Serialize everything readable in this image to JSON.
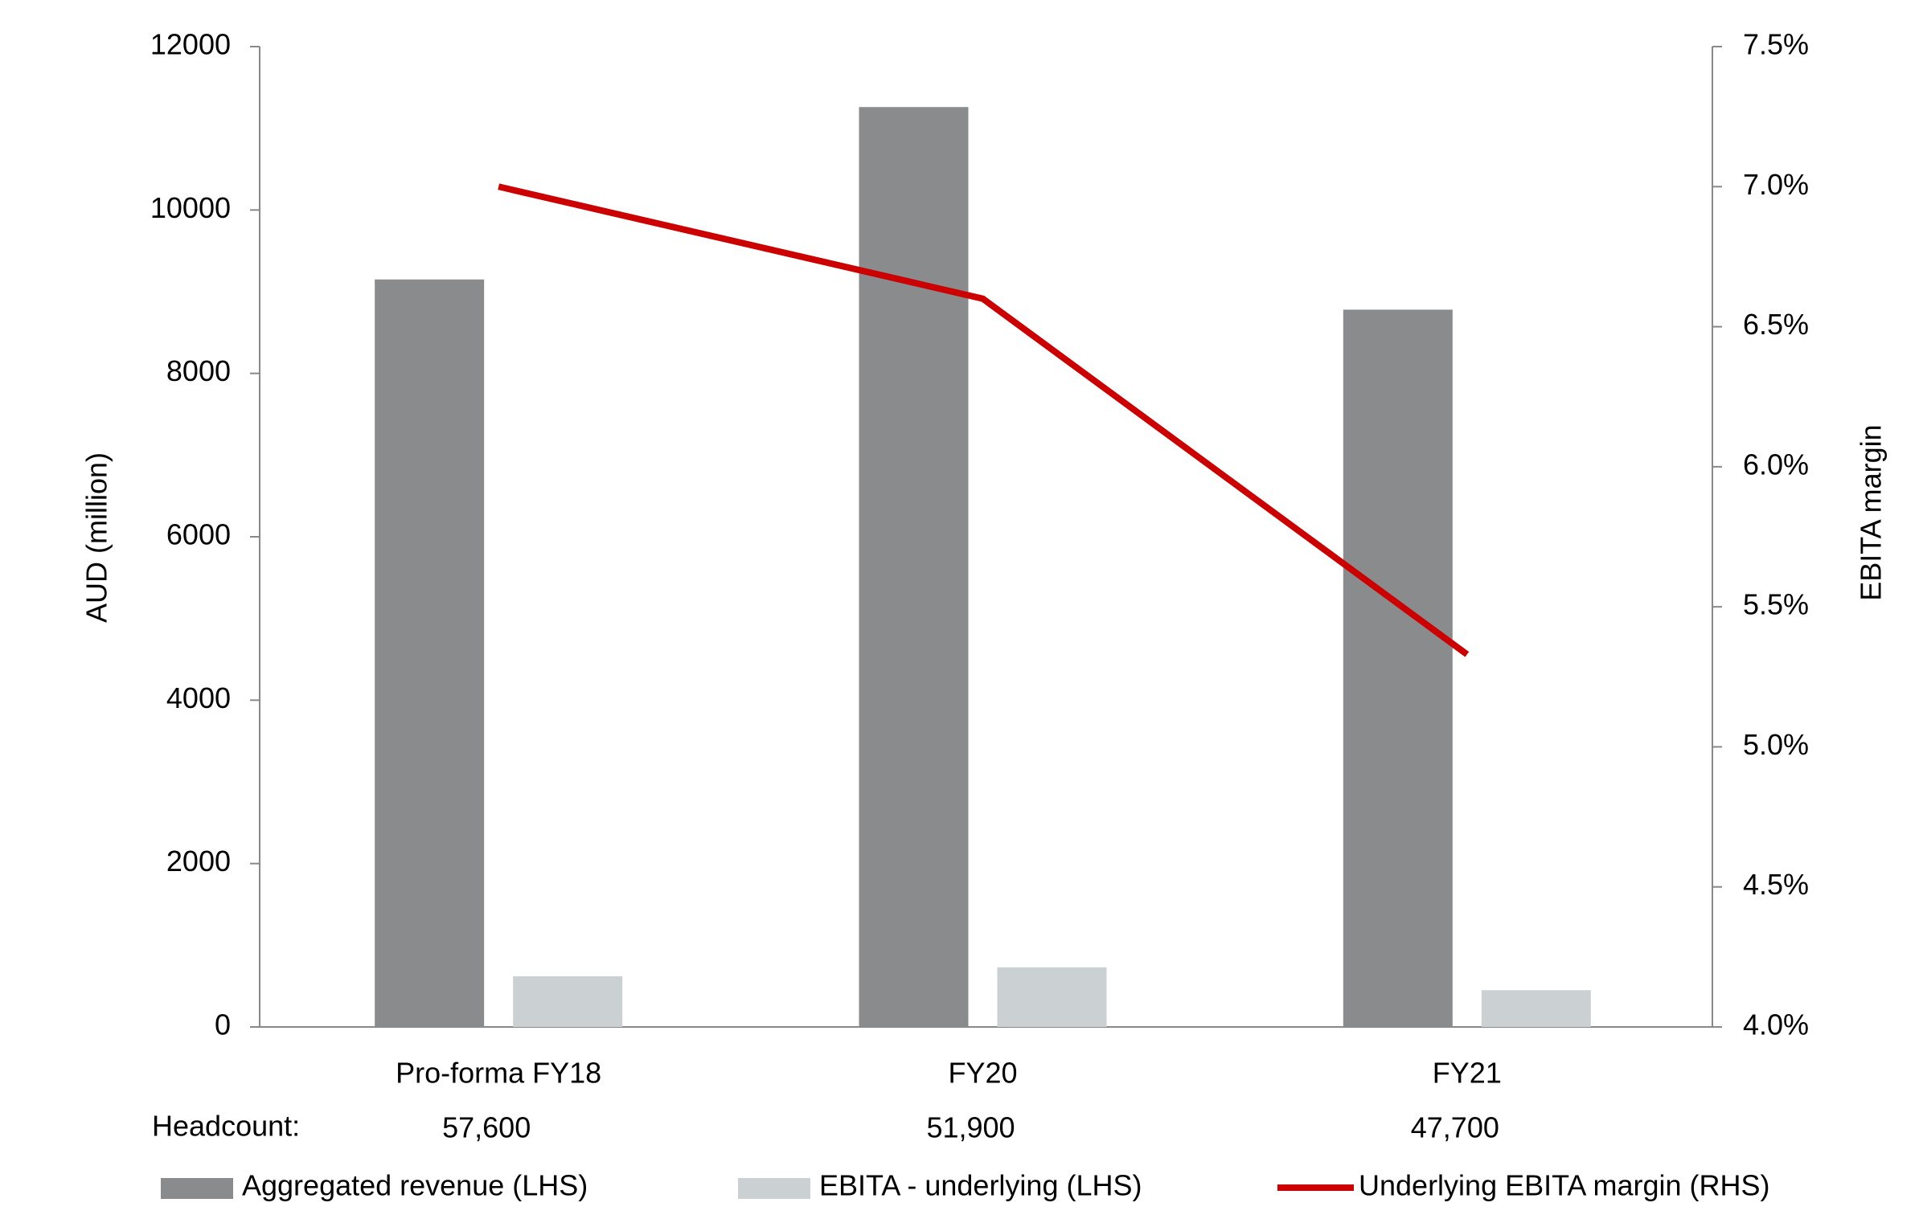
{
  "chart_data": {
    "type": "bar_line",
    "categories": [
      "Pro-forma FY18",
      "FY20",
      "FY21"
    ],
    "series": [
      {
        "name": "Aggregated revenue (LHS)",
        "type": "bar",
        "color": "#8a8b8d",
        "values": [
          9150,
          11260,
          8780
        ]
      },
      {
        "name": "EBITA - underlying (LHS)",
        "type": "bar",
        "color": "#cbd0d2",
        "values": [
          620,
          730,
          450
        ]
      },
      {
        "name": "Underlying EBITA margin (RHS)",
        "type": "line",
        "axis": "y2",
        "color": "#cc0000",
        "values": [
          7.0,
          6.6,
          5.33
        ]
      }
    ],
    "y_label": "AUD (million)",
    "y2_label": "EBITA margin",
    "ylim": [
      0,
      12000
    ],
    "yticks": [
      0,
      2000,
      4000,
      6000,
      8000,
      10000,
      12000
    ],
    "y2lim": [
      4.0,
      7.5
    ],
    "y2ticks": [
      {
        "value": 4.0,
        "label": "4.0%"
      },
      {
        "value": 4.5,
        "label": "4.5%"
      },
      {
        "value": 5.0,
        "label": "5.0%"
      },
      {
        "value": 5.5,
        "label": "5.5%"
      },
      {
        "value": 6.0,
        "label": "6.0%"
      },
      {
        "value": 6.5,
        "label": "6.5%"
      },
      {
        "value": 7.0,
        "label": "7.0%"
      },
      {
        "value": 7.5,
        "label": "7.5%"
      }
    ],
    "headcount": {
      "label": "Headcount:",
      "values": [
        "57,600",
        "51,900",
        "47,700"
      ]
    }
  }
}
